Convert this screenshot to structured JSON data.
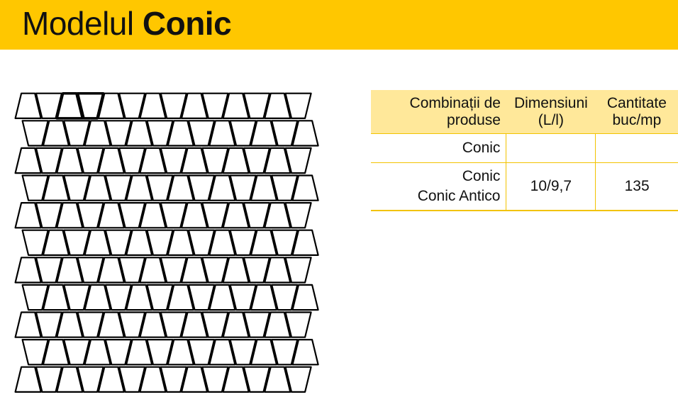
{
  "header": {
    "title_light": "Modelul",
    "title_bold": "Conic"
  },
  "table": {
    "headers": [
      "Combinații de produse",
      "Dimensiuni (L/l)",
      "Cantitate buc/mp"
    ],
    "rows": [
      {
        "product_1": "Conic",
        "dimensions": "",
        "quantity": ""
      },
      {
        "product_1": "Conic",
        "product_2": "Conic Antico",
        "dimensions": "10/9,7",
        "quantity": "135"
      }
    ]
  },
  "colors": {
    "header": "#FFC700",
    "table_header": "#FFE89A",
    "table_lines": "#F2C300"
  }
}
